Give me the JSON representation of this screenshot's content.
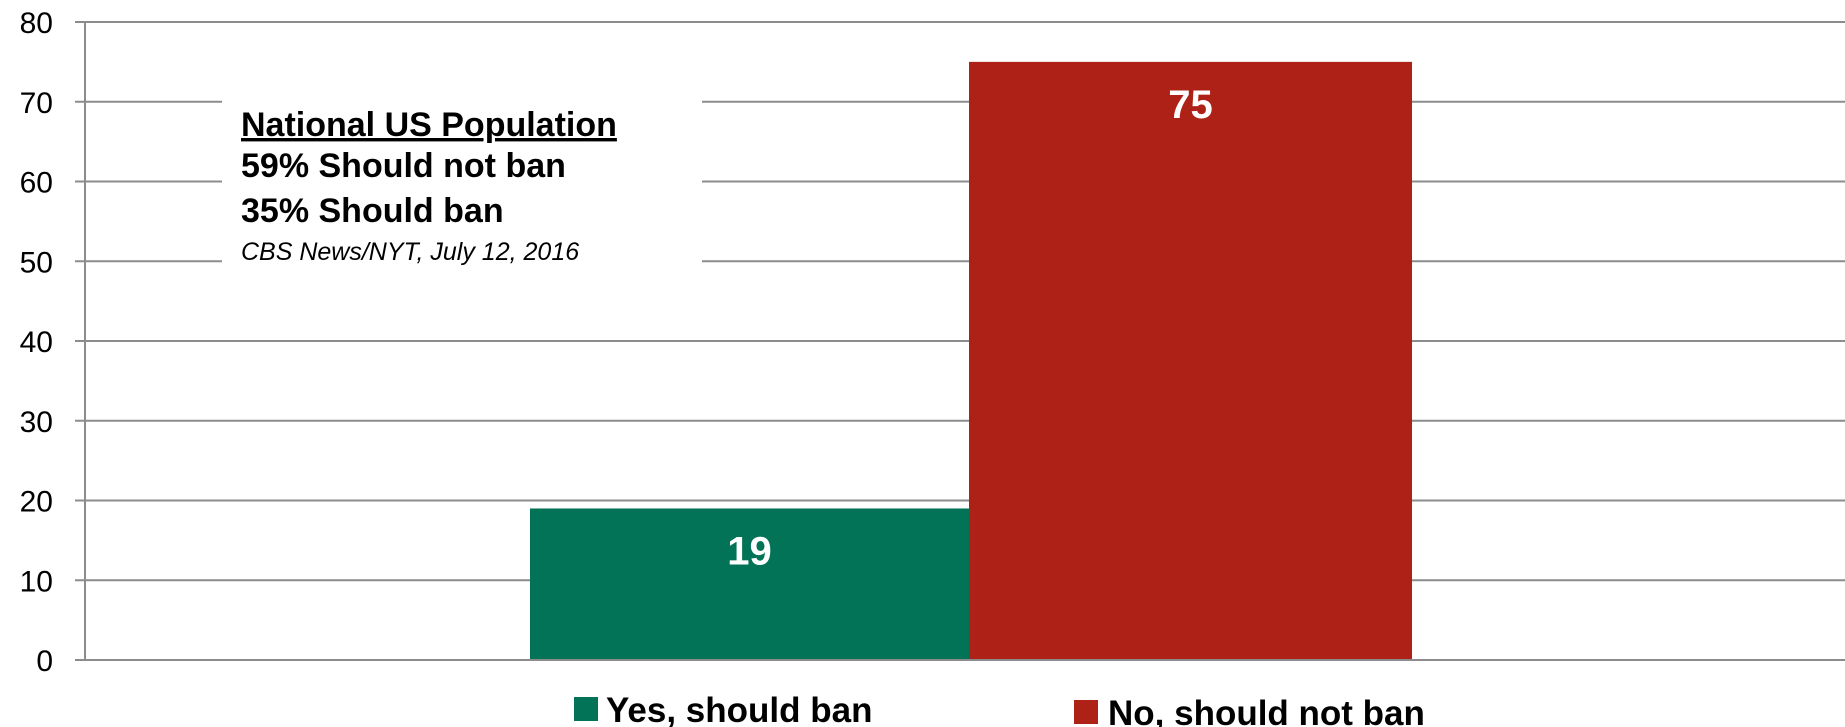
{
  "chart_data": {
    "type": "bar",
    "categories": [
      "Yes, should ban",
      "No, should not ban"
    ],
    "values": [
      19,
      75
    ],
    "colors": [
      "#037358",
      "#ae2116"
    ],
    "ylim": [
      0,
      80
    ],
    "yticks": [
      0,
      10,
      20,
      30,
      40,
      50,
      60,
      70,
      80
    ],
    "grid": true,
    "legend": [
      "Yes, should ban",
      "No, should not ban"
    ],
    "legend_position": "bottom",
    "data_labels": [
      "19",
      "75"
    ],
    "annotation": {
      "title": "National US Population",
      "line1": "59% Should not ban",
      "line2": "35% Should ban",
      "source": "CBS News/NYT, July 12, 2016"
    }
  }
}
